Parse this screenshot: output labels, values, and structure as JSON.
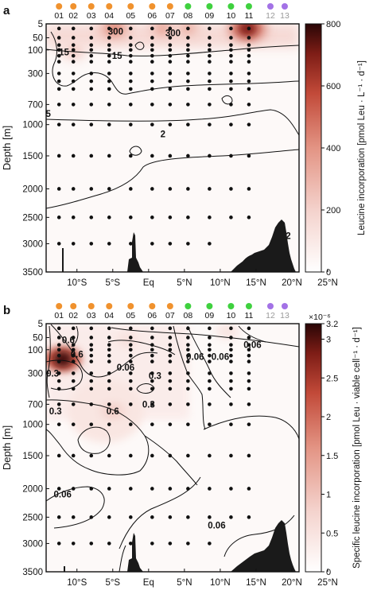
{
  "chart_data": [
    {
      "panel_label": "a",
      "type": "heatmap",
      "ylabel": "Depth [m]",
      "colorbar_label": "Leucine incorporation [pmol Leu · L⁻¹ · d⁻¹]",
      "colorbar_ticks": [
        "0",
        "200",
        "400",
        "600",
        "800"
      ],
      "colorbar_range": [
        0,
        800
      ],
      "colorbar_multiplier": "",
      "station_labels": [
        "01",
        "02",
        "03",
        "04",
        "05",
        "06",
        "07",
        "08",
        "09",
        "10",
        "11",
        "12",
        "13"
      ],
      "station_groups": [
        "orange",
        "orange",
        "orange",
        "orange",
        "orange",
        "orange",
        "orange",
        "green",
        "green",
        "green",
        "green",
        "purple",
        "purple"
      ],
      "station_lat": [
        -12.5,
        -10.5,
        -8,
        -5.5,
        -2.5,
        0.5,
        3,
        5.5,
        8.5,
        11.5,
        14,
        17,
        19
      ],
      "xtick_labels": [
        "10°S",
        "5°S",
        "Eq",
        "5°N",
        "10°N",
        "15°N",
        "20°N",
        "25°N"
      ],
      "ytick_labels": [
        "5",
        "50",
        "100",
        "300",
        "700",
        "1000",
        "1500",
        "2000",
        "2500",
        "3000",
        "3500"
      ],
      "ytick_values": [
        5,
        50,
        100,
        300,
        700,
        1000,
        1500,
        2000,
        2500,
        3000,
        3500
      ],
      "contour_labels": [
        {
          "text": "300",
          "lat": -4.6,
          "depth": 30
        },
        {
          "text": "300",
          "lat": 3.4,
          "depth": 35
        },
        {
          "text": "15",
          "lat": -11.8,
          "depth": 120
        },
        {
          "text": "15",
          "lat": -4.4,
          "depth": 150
        },
        {
          "text": "2",
          "lat": 2.0,
          "depth": 1150
        },
        {
          "text": "5",
          "lat": -14.0,
          "depth": 840
        },
        {
          "text": "2",
          "lat": 19.5,
          "depth": 2850
        }
      ],
      "hotspots": [
        {
          "lat": -4.8,
          "depth": 20,
          "value": 420
        },
        {
          "lat": 2.0,
          "depth": 20,
          "value": 330
        },
        {
          "lat": 5.5,
          "depth": 20,
          "value": 300
        },
        {
          "lat": 13.8,
          "depth": 20,
          "value": 700
        },
        {
          "lat": -10.5,
          "depth": 110,
          "value": 220
        }
      ]
    },
    {
      "panel_label": "b",
      "type": "heatmap",
      "ylabel": "Depth [m]",
      "colorbar_label": "Specific leucine incorporation [pmol Leu · viable cell⁻¹ · d⁻¹]",
      "colorbar_ticks": [
        "0",
        "0.5",
        "1",
        "1.5",
        "2",
        "2.5",
        "3",
        "3.2"
      ],
      "colorbar_range": [
        0,
        3.2
      ],
      "colorbar_multiplier": "×10⁻⁶",
      "station_labels": [
        "01",
        "02",
        "03",
        "04",
        "05",
        "06",
        "07",
        "08",
        "09",
        "10",
        "11",
        "12",
        "13"
      ],
      "station_groups": [
        "orange",
        "orange",
        "orange",
        "orange",
        "orange",
        "orange",
        "orange",
        "green",
        "green",
        "green",
        "green",
        "purple",
        "purple"
      ],
      "station_lat": [
        -12.5,
        -10.5,
        -8,
        -5.5,
        -2.5,
        0.5,
        3,
        5.5,
        8.5,
        11.5,
        14,
        17,
        19
      ],
      "xtick_labels": [
        "10°S",
        "5°S",
        "Eq",
        "5°N",
        "10°N",
        "15°N",
        "20°N",
        "25°N"
      ],
      "ytick_labels": [
        "5",
        "50",
        "100",
        "300",
        "700",
        "1000",
        "1500",
        "2000",
        "2500",
        "3000",
        "3500"
      ],
      "ytick_values": [
        5,
        50,
        100,
        300,
        700,
        1000,
        1500,
        2000,
        2500,
        3000,
        3500
      ],
      "contour_labels": [
        {
          "text": "0.6",
          "lat": -11.2,
          "depth": 60
        },
        {
          "text": "0.6",
          "lat": -10.0,
          "depth": 140
        },
        {
          "text": "0.3",
          "lat": -13.4,
          "depth": 300
        },
        {
          "text": "0.06",
          "lat": -3.2,
          "depth": 250
        },
        {
          "text": "0.3",
          "lat": 0.9,
          "depth": 330
        },
        {
          "text": "0.06",
          "lat": 6.5,
          "depth": 160
        },
        {
          "text": "0.06",
          "lat": 10.0,
          "depth": 160
        },
        {
          "text": "0.06",
          "lat": 14.5,
          "depth": 80
        },
        {
          "text": "0.3",
          "lat": -13.0,
          "depth": 800
        },
        {
          "text": "0.6",
          "lat": -5.0,
          "depth": 800
        },
        {
          "text": "0.3",
          "lat": 0.0,
          "depth": 700
        },
        {
          "text": "0.06",
          "lat": -12.0,
          "depth": 2100
        },
        {
          "text": "0.06",
          "lat": 9.5,
          "depth": 2650
        }
      ],
      "hotspots": [
        {
          "lat": -12.0,
          "depth": 180,
          "value": 3.1
        },
        {
          "lat": -5.0,
          "depth": 800,
          "value": 0.9
        },
        {
          "lat": -3.0,
          "depth": 60,
          "value": 0.6
        },
        {
          "lat": 11.0,
          "depth": 30,
          "value": 0.5
        }
      ]
    }
  ]
}
